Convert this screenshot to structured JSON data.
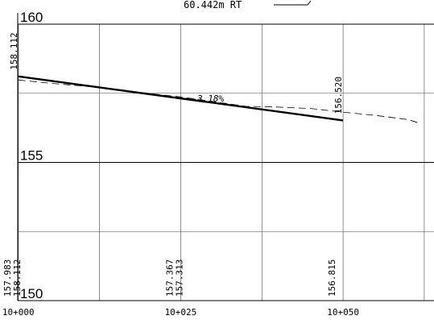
{
  "chart_data": {
    "type": "line",
    "title": "",
    "header_annotation": "60.442m RT",
    "xlabel": "",
    "ylabel": "",
    "xlim": [
      9999.9,
      10064.0
    ],
    "ylim": [
      150,
      160
    ],
    "y_ticks": [
      {
        "value": 160,
        "label": "160"
      },
      {
        "value": 155,
        "label": "155"
      },
      {
        "value": 150,
        "label": "150"
      }
    ],
    "x_ticks": [
      {
        "value": 10000,
        "label": "10+000"
      },
      {
        "value": 10025,
        "label": "10+025"
      },
      {
        "value": 10050,
        "label": "10+050"
      }
    ],
    "x_gridlines": [
      10000,
      10012.5,
      10025,
      10037.5,
      10050,
      10062.5
    ],
    "y_gridlines": [
      160,
      157.5,
      155,
      152.5,
      150
    ],
    "grid": true,
    "series": [
      {
        "name": "",
        "style": "solid-thick",
        "points": [
          {
            "x": 10000,
            "y": 158.112
          },
          {
            "x": 10050,
            "y": 156.52
          }
        ]
      },
      {
        "name": "",
        "style": "dashed",
        "points": [
          {
            "x": 10000,
            "y": 157.983
          },
          {
            "x": 10005,
            "y": 157.86
          },
          {
            "x": 10010,
            "y": 157.76
          },
          {
            "x": 10015,
            "y": 157.65
          },
          {
            "x": 10020,
            "y": 157.5
          },
          {
            "x": 10025,
            "y": 157.367
          },
          {
            "x": 10030,
            "y": 157.2
          },
          {
            "x": 10035,
            "y": 157.03
          },
          {
            "x": 10040,
            "y": 157.0
          },
          {
            "x": 10045,
            "y": 156.95
          },
          {
            "x": 10050,
            "y": 156.815
          },
          {
            "x": 10055,
            "y": 156.7
          },
          {
            "x": 10060,
            "y": 156.55
          },
          {
            "x": 10062,
            "y": 156.4
          }
        ]
      }
    ],
    "grade_label": {
      "text": "-3.18%",
      "x": 10025,
      "y": 157.313
    },
    "top_value_labels": [
      {
        "x": 10000,
        "y": 158.112,
        "text": "158.112"
      },
      {
        "x": 10050,
        "y": 156.52,
        "text": "156.520"
      }
    ],
    "bottom_value_labels": [
      {
        "x": 10000,
        "text": "157.983",
        "slot": 0
      },
      {
        "x": 10000,
        "text": "158.112",
        "slot": 1
      },
      {
        "x": 10025,
        "text": "157.367",
        "slot": 0
      },
      {
        "x": 10025,
        "text": "157.313",
        "slot": 1
      },
      {
        "x": 10050,
        "text": "156.815",
        "slot": 0
      }
    ]
  }
}
